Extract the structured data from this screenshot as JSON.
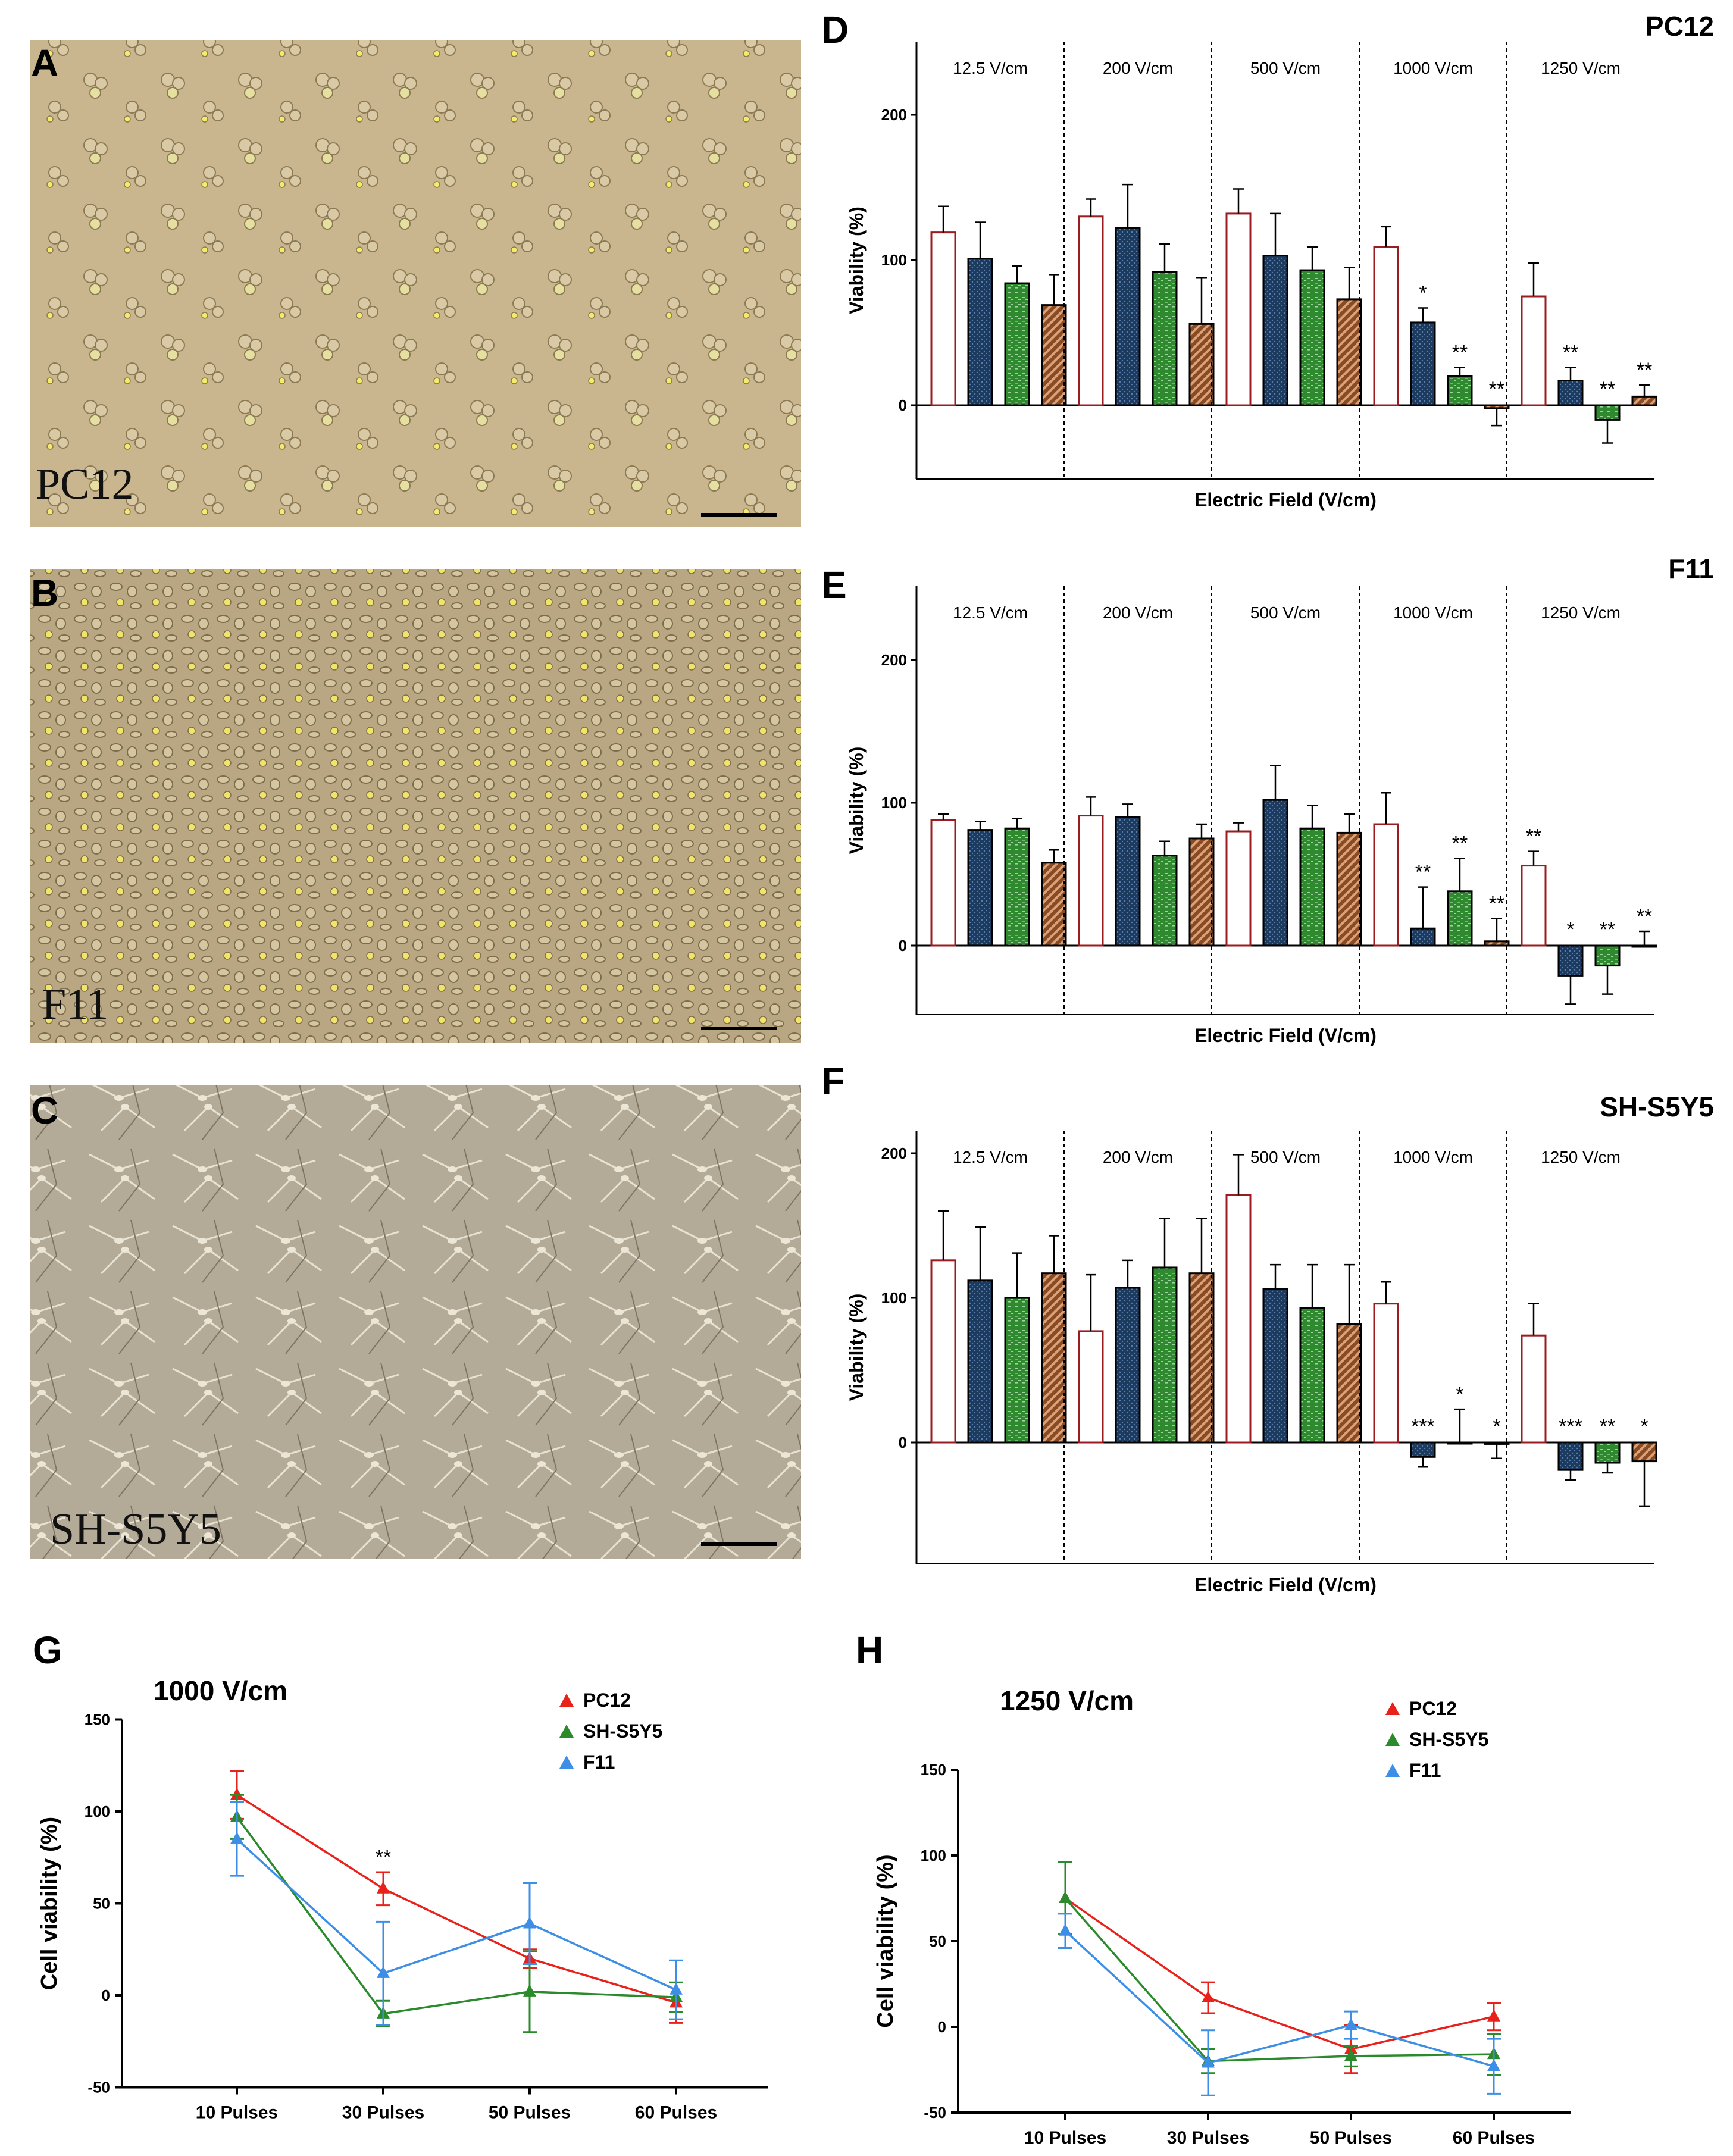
{
  "micrographs": [
    {
      "letter": "A",
      "label": "PC12"
    },
    {
      "letter": "B",
      "label": "F11"
    },
    {
      "letter": "C",
      "label": "SH-S5Y5"
    }
  ],
  "colors": {
    "control_fill": "#ffffff",
    "control_edge": "#9b1c20",
    "p30_fill": "#1c3a5e",
    "p50_fill": "#2f8a2f",
    "p60_fill": "#8a4a22",
    "line_pc12": "#e8211b",
    "line_sh": "#2b8a2b",
    "line_f11": "#3c8ee6"
  },
  "chart_data": [
    {
      "type": "bar",
      "panel": "D",
      "title": "PC12",
      "xlabel": "Electric Field (V/cm)",
      "ylabel": "Viability (%)",
      "ylim": [
        -50,
        250
      ],
      "yticks": [
        0,
        100,
        200
      ],
      "groups": [
        "12.5 V/cm",
        "200 V/cm",
        "500 V/cm",
        "1000 V/cm",
        "1250 V/cm"
      ],
      "series_names": [
        "10 Pulses",
        "30 Pulses",
        "50 Pulses",
        "60 Pulses"
      ],
      "values": [
        [
          119,
          101,
          84,
          69
        ],
        [
          130,
          122,
          92,
          56
        ],
        [
          132,
          103,
          93,
          73
        ],
        [
          109,
          57,
          20,
          -2
        ],
        [
          75,
          17,
          -10,
          6
        ]
      ],
      "errors": [
        [
          18,
          25,
          12,
          21
        ],
        [
          12,
          30,
          19,
          32
        ],
        [
          17,
          29,
          16,
          22
        ],
        [
          14,
          10,
          6,
          12
        ],
        [
          23,
          9,
          16,
          8
        ]
      ],
      "significance": [
        [
          "",
          "",
          "",
          ""
        ],
        [
          "",
          "",
          "",
          ""
        ],
        [
          "",
          "",
          "",
          ""
        ],
        [
          "",
          "*",
          "**",
          "**"
        ],
        [
          "",
          "**",
          "**",
          "**"
        ]
      ]
    },
    {
      "type": "bar",
      "panel": "E",
      "title": "F11",
      "xlabel": "Electric Field (V/cm)",
      "ylabel": "Viability (%)",
      "ylim": [
        -50,
        250
      ],
      "yticks": [
        0,
        100,
        200
      ],
      "groups": [
        "12.5 V/cm",
        "200 V/cm",
        "500 V/cm",
        "1000 V/cm",
        "1250 V/cm"
      ],
      "series_names": [
        "10 Pulses",
        "30 Pulses",
        "50 Pulses",
        "60 Pulses"
      ],
      "values": [
        [
          88,
          81,
          82,
          58
        ],
        [
          91,
          90,
          63,
          75
        ],
        [
          80,
          102,
          82,
          79
        ],
        [
          85,
          12,
          38,
          3
        ],
        [
          56,
          -21,
          -14,
          0
        ]
      ],
      "errors": [
        [
          4,
          6,
          7,
          9
        ],
        [
          13,
          9,
          10,
          10
        ],
        [
          6,
          24,
          16,
          13
        ],
        [
          22,
          29,
          23,
          16
        ],
        [
          10,
          20,
          20,
          10
        ]
      ],
      "significance": [
        [
          "",
          "",
          "",
          ""
        ],
        [
          "",
          "",
          "",
          ""
        ],
        [
          "",
          "",
          "",
          ""
        ],
        [
          "",
          "**",
          "**",
          "**"
        ],
        [
          "**",
          "*",
          "**",
          "**"
        ]
      ]
    },
    {
      "type": "bar",
      "panel": "F",
      "title": "SH-S5Y5",
      "xlabel": "Electric Field (V/cm)",
      "ylabel": "Viability (%)",
      "ylim": [
        -85,
        220
      ],
      "yticks": [
        0,
        100,
        200
      ],
      "groups": [
        "12.5 V/cm",
        "200 V/cm",
        "500 V/cm",
        "1000 V/cm",
        "1250 V/cm"
      ],
      "series_names": [
        "10 Pulses",
        "30 Pulses",
        "50 Pulses",
        "60 Pulses"
      ],
      "values": [
        [
          126,
          112,
          100,
          117
        ],
        [
          77,
          107,
          121,
          117
        ],
        [
          171,
          106,
          93,
          82
        ],
        [
          96,
          -10,
          0,
          -1
        ],
        [
          74,
          -19,
          -14,
          -13
        ]
      ],
      "errors": [
        [
          34,
          37,
          31,
          26
        ],
        [
          39,
          19,
          34,
          38
        ],
        [
          28,
          17,
          30,
          41
        ],
        [
          15,
          7,
          23,
          10
        ],
        [
          22,
          7,
          7,
          31
        ]
      ],
      "significance": [
        [
          "",
          "",
          "",
          ""
        ],
        [
          "",
          "",
          "",
          ""
        ],
        [
          "",
          "",
          "",
          ""
        ],
        [
          "",
          "***",
          "*",
          "*"
        ],
        [
          "",
          "***",
          "**",
          "*"
        ]
      ]
    },
    {
      "type": "line",
      "panel": "G",
      "title": "1000 V/cm",
      "ylabel": "Cell viability (%)",
      "ylim": [
        -50,
        150
      ],
      "yticks": [
        -50,
        0,
        50,
        100,
        150
      ],
      "categories": [
        "10 Pulses",
        "30 Pulses",
        "50 Pulses",
        "60 Pulses"
      ],
      "series": [
        {
          "name": "PC12",
          "values": [
            109,
            58,
            20,
            -4
          ],
          "errors": [
            13,
            9,
            5,
            11
          ]
        },
        {
          "name": "SH-S5Y5",
          "values": [
            97,
            -10,
            2,
            -1
          ],
          "errors": [
            12,
            7,
            22,
            8
          ]
        },
        {
          "name": "F11",
          "values": [
            85,
            12,
            39,
            3
          ],
          "errors": [
            20,
            28,
            22,
            16
          ]
        }
      ],
      "annotations": [
        {
          "category": "30 Pulses",
          "text": "**"
        }
      ]
    },
    {
      "type": "line",
      "panel": "H",
      "title": "1250 V/cm",
      "ylabel": "Cell viability (%)",
      "ylim": [
        -50,
        150
      ],
      "yticks": [
        -50,
        0,
        50,
        100,
        150
      ],
      "categories": [
        "10 Pulses",
        "30 Pulses",
        "50 Pulses",
        "60 Pulses"
      ],
      "series": [
        {
          "name": "PC12",
          "values": [
            75,
            17,
            -13,
            6
          ],
          "errors": [
            21,
            9,
            14,
            8
          ]
        },
        {
          "name": "SH-S5Y5",
          "values": [
            75,
            -20,
            -17,
            -16
          ],
          "errors": [
            21,
            7,
            6,
            12
          ]
        },
        {
          "name": "F11",
          "values": [
            56,
            -21,
            1,
            -23
          ],
          "errors": [
            10,
            19,
            8,
            16
          ]
        }
      ],
      "annotations": []
    }
  ]
}
